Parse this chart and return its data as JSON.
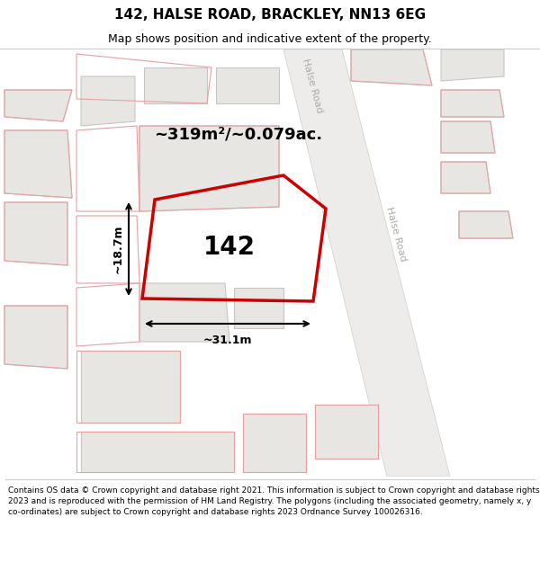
{
  "title_line1": "142, HALSE ROAD, BRACKLEY, NN13 6EG",
  "title_line2": "Map shows position and indicative extent of the property.",
  "footer_text": "Contains OS data © Crown copyright and database right 2021. This information is subject to Crown copyright and database rights 2023 and is reproduced with the permission of HM Land Registry. The polygons (including the associated geometry, namely x, y co-ordinates) are subject to Crown copyright and database rights 2023 Ordnance Survey 100026316.",
  "area_label": "~319m²/~0.079ac.",
  "plot_number": "142",
  "width_label": "~31.1m",
  "height_label": "~18.7m",
  "road_label_top": "Halse Road",
  "road_label_right": "Halse Road",
  "map_bg": "#ffffff",
  "building_fill": "#e8e6e2",
  "building_edge": "#c8c6c2",
  "road_fill": "#f0eeea",
  "road_edge": "#d8d5d0",
  "pink_edge": "#e8a0a0",
  "red_edge": "#cc0000",
  "title_fs": 11,
  "subtitle_fs": 9,
  "area_fs": 13,
  "plot_num_fs": 20,
  "meas_fs": 9,
  "road_label_fs": 8,
  "footer_fs": 6.5
}
